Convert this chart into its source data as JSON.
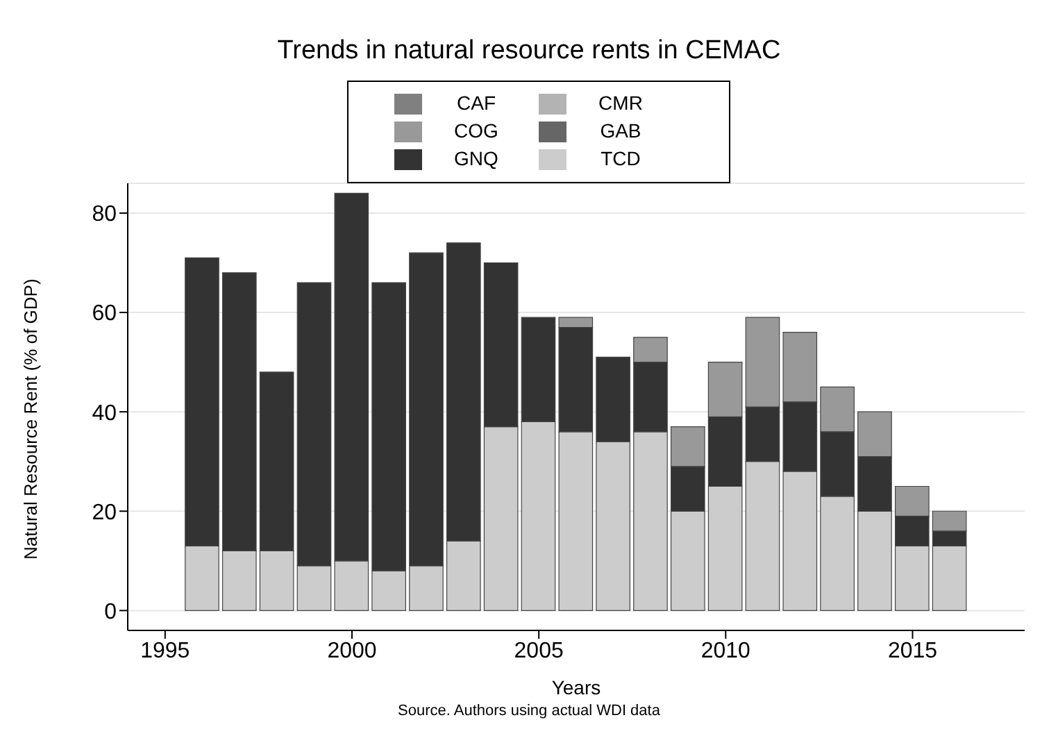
{
  "chart_data": {
    "type": "bar",
    "stacked": true,
    "title": "Trends in natural resource rents in CEMAC",
    "xlabel": "Years",
    "ylabel": "Natural Resource Rent (% of GDP)",
    "x": [
      1996,
      1997,
      1998,
      1999,
      2000,
      2001,
      2002,
      2003,
      2004,
      2005,
      2006,
      2007,
      2008,
      2009,
      2010,
      2011,
      2012,
      2013,
      2014,
      2015,
      2016
    ],
    "series": [
      {
        "name": "TCD",
        "color": "#cccccc",
        "values": [
          13,
          12,
          12,
          9,
          10,
          8,
          9,
          14,
          37,
          38,
          36,
          34,
          36,
          20,
          25,
          30,
          28,
          23,
          20,
          13,
          13
        ]
      },
      {
        "name": "GNQ",
        "color": "#333333",
        "values": [
          58,
          56,
          36,
          57,
          74,
          58,
          63,
          60,
          33,
          21,
          21,
          17,
          14,
          9,
          14,
          11,
          14,
          13,
          11,
          6,
          3
        ]
      },
      {
        "name": "COG",
        "color": "#999999",
        "values": [
          null,
          null,
          null,
          null,
          null,
          null,
          null,
          null,
          null,
          null,
          2,
          null,
          5,
          8,
          11,
          18,
          14,
          9,
          9,
          6,
          4
        ]
      },
      {
        "name": "CAF",
        "color": "#808080",
        "values": [
          null,
          null,
          null,
          null,
          null,
          null,
          null,
          null,
          null,
          null,
          null,
          null,
          null,
          null,
          null,
          null,
          null,
          null,
          null,
          null,
          null
        ]
      },
      {
        "name": "CMR",
        "color": "#b3b3b3",
        "values": [
          null,
          null,
          null,
          null,
          null,
          null,
          null,
          null,
          null,
          null,
          null,
          null,
          null,
          null,
          null,
          null,
          null,
          null,
          null,
          null,
          null
        ]
      },
      {
        "name": "GAB",
        "color": "#666666",
        "values": [
          null,
          null,
          null,
          null,
          null,
          null,
          null,
          null,
          null,
          null,
          null,
          null,
          null,
          null,
          null,
          null,
          null,
          null,
          null,
          null,
          null
        ]
      }
    ],
    "xlim": [
      1994,
      2018
    ],
    "xticks": [
      1995,
      2000,
      2005,
      2010,
      2015
    ],
    "ylim": [
      -4,
      86
    ],
    "yticks": [
      0,
      20,
      40,
      60,
      80
    ],
    "grid": "y",
    "legend": "top",
    "annotations": [
      "Source. Authors using actual WDI data"
    ]
  }
}
